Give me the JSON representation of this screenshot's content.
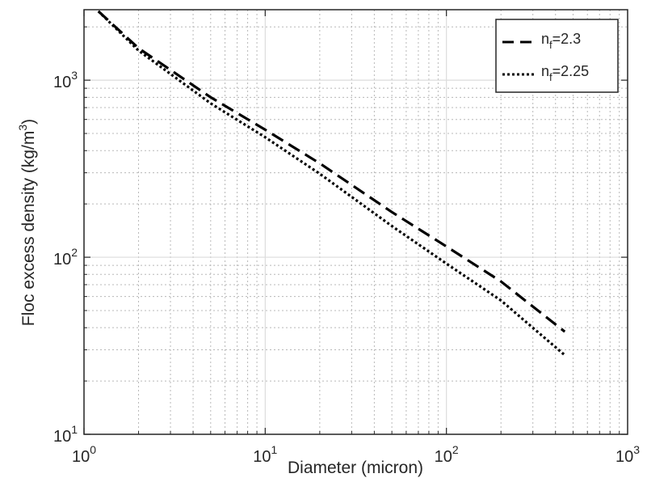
{
  "chart_data": {
    "type": "line",
    "xscale": "log",
    "yscale": "log",
    "xlim": [
      1,
      1000
    ],
    "ylim": [
      10,
      2500
    ],
    "xlabel": "Diameter (micron)",
    "ylabel_prefix": "Floc excess density (kg/m",
    "ylabel_exp": "3",
    "ylabel_suffix": ")",
    "grid": true,
    "legend_position": "top-right",
    "x_ticks": [
      {
        "value": 1,
        "base": "10",
        "exp": "0"
      },
      {
        "value": 10,
        "base": "10",
        "exp": "1"
      },
      {
        "value": 100,
        "base": "10",
        "exp": "2"
      },
      {
        "value": 1000,
        "base": "10",
        "exp": "3"
      }
    ],
    "y_ticks": [
      {
        "value": 10,
        "base": "10",
        "exp": "1"
      },
      {
        "value": 100,
        "base": "10",
        "exp": "2"
      },
      {
        "value": 1000,
        "base": "10",
        "exp": "3"
      }
    ],
    "series": [
      {
        "name_main": "n",
        "name_sub": "f",
        "name_value": "=2.3",
        "style": "dashed",
        "color": "#000000",
        "x": [
          1.2,
          2,
          5,
          10,
          20,
          50,
          100,
          200,
          450
        ],
        "y": [
          2450,
          1515,
          800,
          525,
          339,
          180,
          115,
          73,
          38
        ]
      },
      {
        "name_main": "n",
        "name_sub": "f",
        "name_value": "=2.25",
        "style": "dotted",
        "color": "#000000",
        "x": [
          1.2,
          2,
          5,
          10,
          20,
          50,
          100,
          200,
          450
        ],
        "y": [
          2450,
          1470,
          740,
          476,
          296,
          150,
          92,
          57,
          28
        ]
      }
    ]
  }
}
